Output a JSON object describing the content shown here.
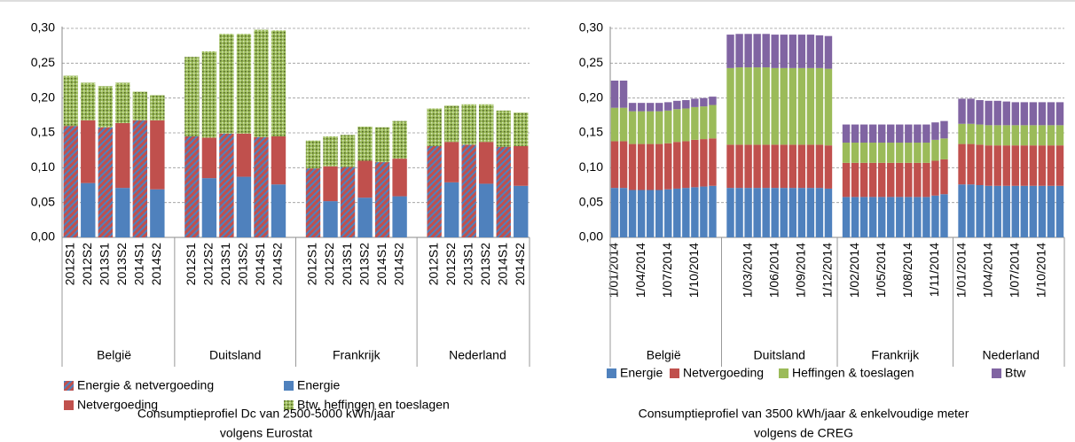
{
  "chart_data": [
    {
      "type": "bar",
      "stacked": true,
      "grid": true,
      "title": [
        "Consumptieprofiel Dc van 2500-5000 kWh/jaar",
        "volgens Eurostat"
      ],
      "groups": [
        "België",
        "Duitsland",
        "Frankrijk",
        "Nederland"
      ],
      "categories": [
        "2012S1",
        "2012S2",
        "2013S1",
        "2013S2",
        "2014S1",
        "2014S2",
        "2012S1",
        "2012S2",
        "2013S1",
        "2013S2",
        "2014S1",
        "2014S2",
        "2012S1",
        "2012S2",
        "2013S1",
        "2013S2",
        "2014S1",
        "2014S2",
        "2012S1",
        "2012S2",
        "2013S1",
        "2013S2",
        "2014S1",
        "2014S2"
      ],
      "ylim": [
        0,
        0.3
      ],
      "yticks": [
        {
          "value": 0,
          "label": "0,00"
        },
        {
          "value": 0.05,
          "label": "0,05"
        },
        {
          "value": 0.1,
          "label": "0,10"
        },
        {
          "value": 0.15,
          "label": "0,15"
        },
        {
          "value": 0.2,
          "label": "0,20"
        },
        {
          "value": 0.25,
          "label": "0,25"
        },
        {
          "value": 0.3,
          "label": "0,30"
        }
      ],
      "series": [
        {
          "name": "Energie & netvergoeding",
          "color": "#c0504d",
          "pattern": "hatch",
          "values": [
            0.16,
            null,
            0.158,
            null,
            0.168,
            null,
            0.145,
            null,
            0.149,
            null,
            0.144,
            null,
            0.099,
            null,
            0.101,
            null,
            0.108,
            null,
            0.131,
            null,
            0.133,
            null,
            0.13,
            null
          ]
        },
        {
          "name": "Energie",
          "color": "#4f81bd",
          "values": [
            null,
            0.078,
            null,
            0.071,
            null,
            0.069,
            null,
            0.085,
            null,
            0.087,
            null,
            0.076,
            null,
            0.052,
            null,
            0.057,
            null,
            0.059,
            null,
            0.079,
            null,
            0.077,
            null,
            0.074
          ]
        },
        {
          "name": "Netvergoeding",
          "color": "#c0504d",
          "values": [
            null,
            0.09,
            null,
            0.093,
            null,
            0.099,
            null,
            0.058,
            null,
            0.062,
            null,
            0.069,
            null,
            0.05,
            null,
            0.053,
            null,
            0.054,
            null,
            0.058,
            null,
            0.06,
            null,
            0.057
          ]
        },
        {
          "name": "Btw, heffingen en toeslagen",
          "color": "#9bbb59",
          "pattern": "dots",
          "values": [
            0.072,
            0.054,
            0.059,
            0.058,
            0.041,
            0.036,
            0.114,
            0.124,
            0.143,
            0.143,
            0.154,
            0.152,
            0.04,
            0.043,
            0.046,
            0.049,
            0.05,
            0.054,
            0.054,
            0.052,
            0.058,
            0.054,
            0.052,
            0.048
          ]
        }
      ]
    },
    {
      "type": "bar",
      "stacked": true,
      "grid": true,
      "title": [
        "Consumptieprofiel van 3500 kWh/jaar & enkelvoudige meter",
        "volgens de CREG"
      ],
      "groups": [
        "België",
        "Duitsland",
        "Frankrijk",
        "Nederland"
      ],
      "categories": [
        "1/01/2014",
        null,
        null,
        "1/04/2014",
        null,
        null,
        "1/07/2014",
        null,
        null,
        "1/10/2014",
        null,
        null,
        null,
        null,
        "1/03/2014",
        null,
        null,
        "1/06/2014",
        null,
        null,
        "1/09/2014",
        null,
        null,
        "1/12/2014",
        null,
        "1/02/2014",
        null,
        null,
        "1/05/2014",
        null,
        null,
        "1/08/2014",
        null,
        null,
        "1/11/2014",
        null,
        "1/01/2014",
        null,
        null,
        "1/04/2014",
        null,
        null,
        "1/07/2014",
        null,
        null,
        "1/10/2014",
        null,
        null
      ],
      "ylim": [
        0,
        0.3
      ],
      "yticks": [
        {
          "value": 0,
          "label": "0,00"
        },
        {
          "value": 0.05,
          "label": "0,05"
        },
        {
          "value": 0.1,
          "label": "0,10"
        },
        {
          "value": 0.15,
          "label": "0,15"
        },
        {
          "value": 0.2,
          "label": "0,20"
        },
        {
          "value": 0.25,
          "label": "0,25"
        },
        {
          "value": 0.3,
          "label": "0,30"
        }
      ],
      "series": [
        {
          "name": "Energie",
          "color": "#4f81bd",
          "values": [
            0.071,
            0.071,
            0.068,
            0.068,
            0.068,
            0.068,
            0.069,
            0.07,
            0.071,
            0.072,
            0.073,
            0.074,
            0.071,
            0.071,
            0.071,
            0.071,
            0.071,
            0.071,
            0.071,
            0.071,
            0.071,
            0.071,
            0.071,
            0.07,
            0.058,
            0.058,
            0.058,
            0.058,
            0.058,
            0.058,
            0.058,
            0.058,
            0.058,
            0.058,
            0.06,
            0.062,
            0.076,
            0.076,
            0.075,
            0.074,
            0.074,
            0.074,
            0.074,
            0.074,
            0.074,
            0.074,
            0.074,
            0.074
          ]
        },
        {
          "name": "Netvergoeding",
          "color": "#c0504d",
          "values": [
            0.067,
            0.067,
            0.066,
            0.066,
            0.066,
            0.066,
            0.066,
            0.067,
            0.067,
            0.068,
            0.068,
            0.068,
            0.062,
            0.062,
            0.062,
            0.062,
            0.062,
            0.062,
            0.062,
            0.062,
            0.062,
            0.062,
            0.062,
            0.062,
            0.049,
            0.049,
            0.049,
            0.049,
            0.049,
            0.049,
            0.049,
            0.049,
            0.049,
            0.049,
            0.05,
            0.05,
            0.058,
            0.058,
            0.058,
            0.058,
            0.058,
            0.058,
            0.058,
            0.058,
            0.058,
            0.058,
            0.058,
            0.058
          ]
        },
        {
          "name": "Heffingen & toeslagen",
          "color": "#9bbb59",
          "values": [
            0.048,
            0.048,
            0.047,
            0.047,
            0.047,
            0.047,
            0.047,
            0.047,
            0.047,
            0.047,
            0.047,
            0.048,
            0.11,
            0.111,
            0.111,
            0.111,
            0.111,
            0.11,
            0.11,
            0.11,
            0.11,
            0.11,
            0.11,
            0.11,
            0.029,
            0.029,
            0.029,
            0.029,
            0.029,
            0.029,
            0.029,
            0.029,
            0.029,
            0.029,
            0.03,
            0.03,
            0.029,
            0.029,
            0.029,
            0.029,
            0.029,
            0.029,
            0.029,
            0.029,
            0.029,
            0.029,
            0.029,
            0.029
          ]
        },
        {
          "name": "Btw",
          "color": "#8064a2",
          "values": [
            0.039,
            0.039,
            0.012,
            0.012,
            0.012,
            0.012,
            0.012,
            0.012,
            0.012,
            0.012,
            0.012,
            0.012,
            0.048,
            0.048,
            0.048,
            0.048,
            0.048,
            0.048,
            0.048,
            0.048,
            0.048,
            0.048,
            0.047,
            0.047,
            0.026,
            0.026,
            0.026,
            0.026,
            0.026,
            0.026,
            0.026,
            0.026,
            0.026,
            0.026,
            0.025,
            0.025,
            0.036,
            0.036,
            0.035,
            0.035,
            0.035,
            0.034,
            0.033,
            0.033,
            0.033,
            0.033,
            0.033,
            0.033
          ]
        }
      ]
    }
  ]
}
